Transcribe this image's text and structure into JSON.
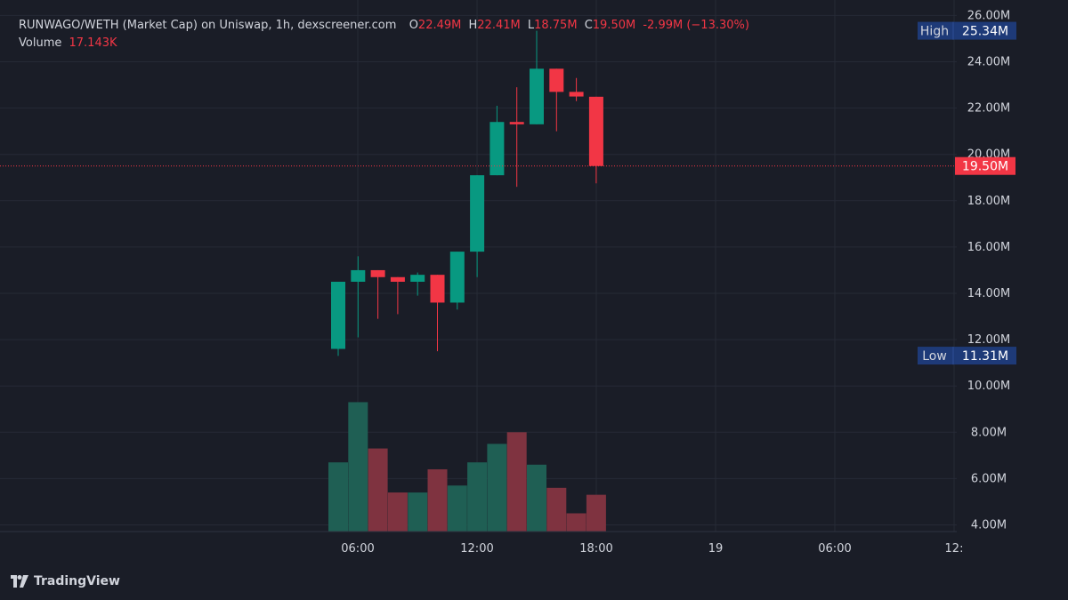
{
  "legend": {
    "title": "RUNWAGO/WETH (Market Cap) on Uniswap, 1h, dexscreener.com",
    "o_label": "O",
    "o_value": "22.49M",
    "h_label": "H",
    "h_value": "22.41M",
    "l_label": "L",
    "l_value": "18.75M",
    "c_label": "C",
    "c_value": "19.50M",
    "change": "-2.99M (−13.30%)",
    "volume_label": "Volume",
    "volume_value": "17.143K"
  },
  "price_tags": {
    "high_label": "High",
    "high_value": "25.34M",
    "low_label": "Low",
    "low_value": "11.31M",
    "last_value": "19.50M"
  },
  "branding": {
    "name": "TradingView"
  },
  "colors": {
    "background": "#1a1d27",
    "up": "#089981",
    "down": "#f23645",
    "up_volume": "#1f5f54",
    "down_volume": "#7f3340",
    "grid": "#262a36",
    "text": "#d1d4dc",
    "tag": "#1e3a78"
  },
  "chart_data": {
    "type": "candlestick",
    "unit": "M",
    "ylim": [
      4,
      26
    ],
    "y_ticks": [
      "4.00M",
      "6.00M",
      "8.00M",
      "10.00M",
      "12.00M",
      "14.00M",
      "16.00M",
      "18.00M",
      "20.00M",
      "22.00M",
      "24.00M",
      "26.00M"
    ],
    "x_ticks": [
      "06:00",
      "12:00",
      "18:00",
      "19",
      "06:00",
      "12:"
    ],
    "candles": [
      {
        "o": 11.6,
        "h": 14.5,
        "l": 11.3,
        "c": 14.5
      },
      {
        "o": 14.5,
        "h": 15.6,
        "l": 12.1,
        "c": 15.0
      },
      {
        "o": 15.0,
        "h": 15.0,
        "l": 12.9,
        "c": 14.7
      },
      {
        "o": 14.7,
        "h": 14.7,
        "l": 13.1,
        "c": 14.5
      },
      {
        "o": 14.5,
        "h": 14.9,
        "l": 13.9,
        "c": 14.8
      },
      {
        "o": 14.8,
        "h": 14.8,
        "l": 11.5,
        "c": 13.6
      },
      {
        "o": 13.6,
        "h": 15.8,
        "l": 13.3,
        "c": 15.8
      },
      {
        "o": 15.8,
        "h": 19.1,
        "l": 14.7,
        "c": 19.1
      },
      {
        "o": 19.1,
        "h": 22.1,
        "l": 19.1,
        "c": 21.4
      },
      {
        "o": 21.4,
        "h": 22.9,
        "l": 18.6,
        "c": 21.3
      },
      {
        "o": 21.3,
        "h": 25.34,
        "l": 21.3,
        "c": 23.7
      },
      {
        "o": 23.7,
        "h": 23.7,
        "l": 21.0,
        "c": 22.7
      },
      {
        "o": 22.7,
        "h": 23.3,
        "l": 22.3,
        "c": 22.5
      },
      {
        "o": 22.49,
        "h": 22.41,
        "l": 18.75,
        "c": 19.5
      }
    ],
    "volume_bars": [
      6.7,
      9.3,
      7.3,
      5.4,
      5.4,
      6.4,
      5.7,
      6.7,
      7.5,
      8.0,
      6.6,
      5.6,
      4.5,
      5.3
    ],
    "last_price": 19.5,
    "high": 25.34,
    "low": 11.31,
    "grid": true
  }
}
